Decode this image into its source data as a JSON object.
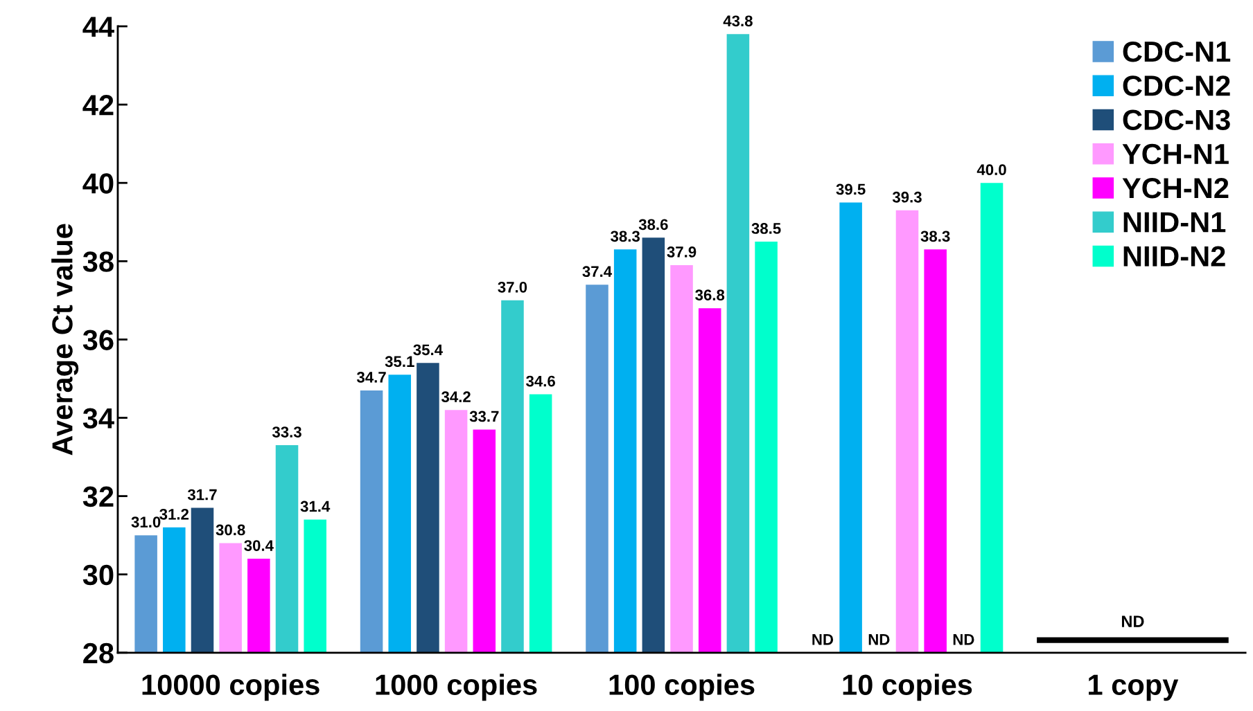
{
  "chart_data": {
    "type": "bar",
    "ylabel": "Average Ct value",
    "categories": [
      "10000 copies",
      "1000 copies",
      "100 copies",
      "10 copies",
      "1 copy"
    ],
    "series": [
      {
        "name": "CDC-N1",
        "color": "#5b9bd5",
        "values": [
          31.0,
          34.7,
          37.4,
          null,
          null
        ],
        "value_labels": [
          "31.0",
          "34.7",
          "37.4",
          "ND",
          null
        ]
      },
      {
        "name": "CDC-N2",
        "color": "#00b0f0",
        "values": [
          31.2,
          35.1,
          38.3,
          39.5,
          null
        ],
        "value_labels": [
          "31.2",
          "35.1",
          "38.3",
          "39.5",
          null
        ]
      },
      {
        "name": "CDC-N3",
        "color": "#1f4e79",
        "values": [
          31.7,
          35.4,
          38.6,
          null,
          null
        ],
        "value_labels": [
          "31.7",
          "35.4",
          "38.6",
          "ND",
          null
        ]
      },
      {
        "name": "YCH-N1",
        "color": "#ff99ff",
        "values": [
          30.8,
          34.2,
          37.9,
          39.3,
          null
        ],
        "value_labels": [
          "30.8",
          "34.2",
          "37.9",
          "39.3",
          null
        ]
      },
      {
        "name": "YCH-N2",
        "color": "#ff00ff",
        "values": [
          30.4,
          33.7,
          36.8,
          38.3,
          null
        ],
        "value_labels": [
          "30.4",
          "33.7",
          "36.8",
          "38.3",
          null
        ]
      },
      {
        "name": "NIID-N1",
        "color": "#33cccc",
        "values": [
          33.3,
          37.0,
          43.8,
          null,
          null
        ],
        "value_labels": [
          "33.3",
          "37.0",
          "43.8",
          "ND",
          null
        ]
      },
      {
        "name": "NIID-N2",
        "color": "#00ffcc",
        "values": [
          31.4,
          34.6,
          38.5,
          40.0,
          null
        ],
        "value_labels": [
          "31.4",
          "34.6",
          "38.5",
          "40.0",
          null
        ]
      }
    ],
    "annotations": [
      "ND"
    ],
    "ylim": [
      28,
      44
    ],
    "yticks": [
      28,
      30,
      32,
      34,
      36,
      38,
      40,
      42,
      44
    ],
    "grid": false,
    "legend": "top right"
  }
}
